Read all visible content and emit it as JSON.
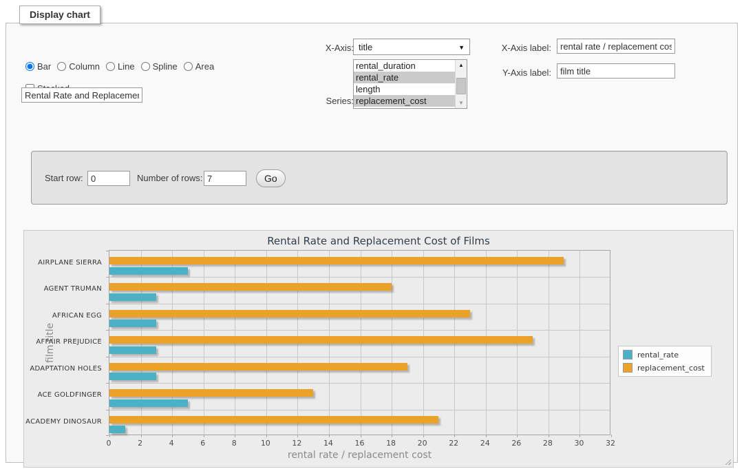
{
  "panel": {
    "legend": "Display chart"
  },
  "chart_type": {
    "options": [
      "Bar",
      "Column",
      "Line",
      "Spline",
      "Area"
    ],
    "selected": "Bar"
  },
  "stacked": {
    "label": "Stacked",
    "checked": false
  },
  "title_input": {
    "value": "Rental Rate and Replacemer"
  },
  "x_axis": {
    "label": "X-Axis:",
    "selected": "title"
  },
  "series_select": {
    "label": "Series:",
    "options": [
      {
        "label": "rental_duration",
        "selected": false
      },
      {
        "label": "rental_rate",
        "selected": true
      },
      {
        "label": "length",
        "selected": false
      },
      {
        "label": "replacement_cost",
        "selected": true
      }
    ]
  },
  "x_axis_label_field": {
    "label": "X-Axis label:",
    "value": "rental rate / replacement cost"
  },
  "y_axis_label_field": {
    "label": "Y-Axis label:",
    "value": "film title"
  },
  "pagination": {
    "start_row_label": "Start row:",
    "start_row_value": "0",
    "num_rows_label": "Number of rows:",
    "num_rows_value": "7",
    "go_label": "Go"
  },
  "colors": {
    "rental_rate": "#4bb2c5",
    "replacement_cost": "#eaa228"
  },
  "chart_data": {
    "type": "bar",
    "orientation": "horizontal",
    "title": "Rental Rate and Replacement Cost of Films",
    "xlabel": "rental rate / replacement cost",
    "ylabel": "film title",
    "categories": [
      "AIRPLANE SIERRA",
      "AGENT TRUMAN",
      "AFRICAN EGG",
      "AFFAIR PREJUDICE",
      "ADAPTATION HOLES",
      "ACE GOLDFINGER",
      "ACADEMY DINOSAUR"
    ],
    "series": [
      {
        "name": "rental_rate",
        "color": "#4bb2c5",
        "values": [
          4.99,
          2.99,
          2.99,
          2.99,
          2.99,
          4.99,
          0.99
        ]
      },
      {
        "name": "replacement_cost",
        "color": "#eaa228",
        "values": [
          28.99,
          17.99,
          22.99,
          26.99,
          18.99,
          12.99,
          20.99
        ]
      }
    ],
    "xlim": [
      0,
      32
    ],
    "xtick_step": 2,
    "grid": true,
    "legend_position": "right-outside",
    "bar_order_top_to_bottom": [
      "replacement_cost",
      "rental_rate"
    ]
  }
}
